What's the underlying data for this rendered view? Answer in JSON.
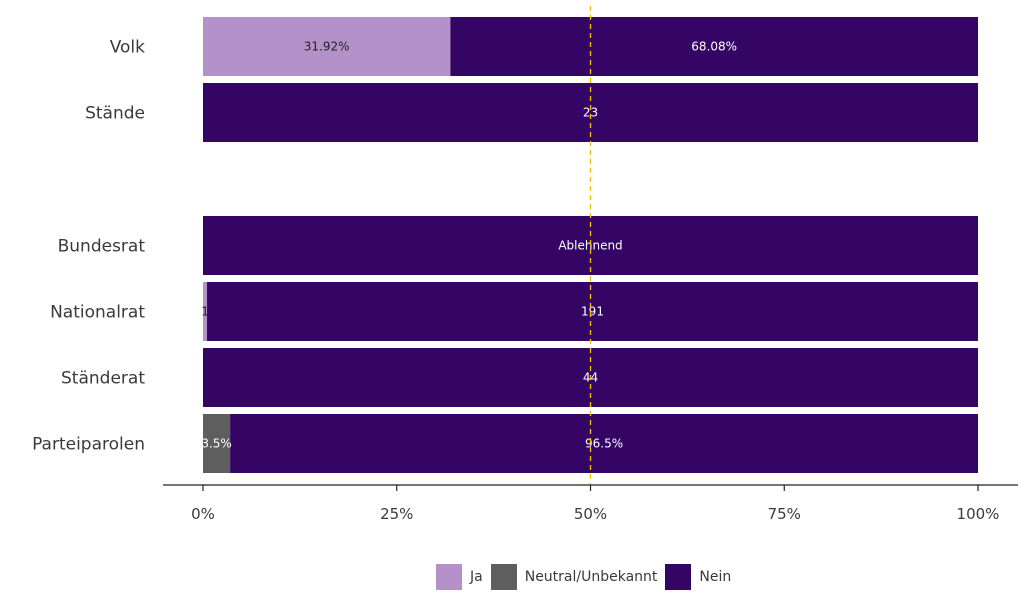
{
  "chart_data": {
    "type": "bar",
    "orientation": "horizontal",
    "stacked": true,
    "normalized": true,
    "xlim": [
      0,
      100
    ],
    "x_ticks": [
      "0%",
      "25%",
      "50%",
      "75%",
      "100%"
    ],
    "reference_line": {
      "x": 50,
      "style": "dashed",
      "color": "#f0c000"
    },
    "categories": [
      "Volk",
      "Stände",
      "Bundesrat",
      "Nationalrat",
      "Ständerat",
      "Parteiparolen"
    ],
    "series": [
      {
        "name": "Ja",
        "color": "#b491c8",
        "values": [
          31.92,
          0,
          0,
          0.52,
          0,
          0
        ],
        "labels": [
          "31.92%",
          "",
          "",
          "1",
          "",
          ""
        ]
      },
      {
        "name": "Neutral/Unbekannt",
        "color": "#5e5e5e",
        "values": [
          0,
          0,
          0,
          0,
          0,
          3.5
        ],
        "labels": [
          "",
          "",
          "",
          "",
          "",
          "3.5%"
        ]
      },
      {
        "name": "Nein",
        "color": "#340565",
        "values": [
          68.08,
          100,
          100,
          99.48,
          100,
          96.5
        ],
        "labels": [
          "68.08%",
          "23",
          "Ablehnend",
          "191",
          "44",
          "96.5%"
        ]
      }
    ],
    "legend": {
      "position": "bottom",
      "entries": [
        "Ja",
        "Neutral/Unbekannt",
        "Nein"
      ]
    }
  }
}
